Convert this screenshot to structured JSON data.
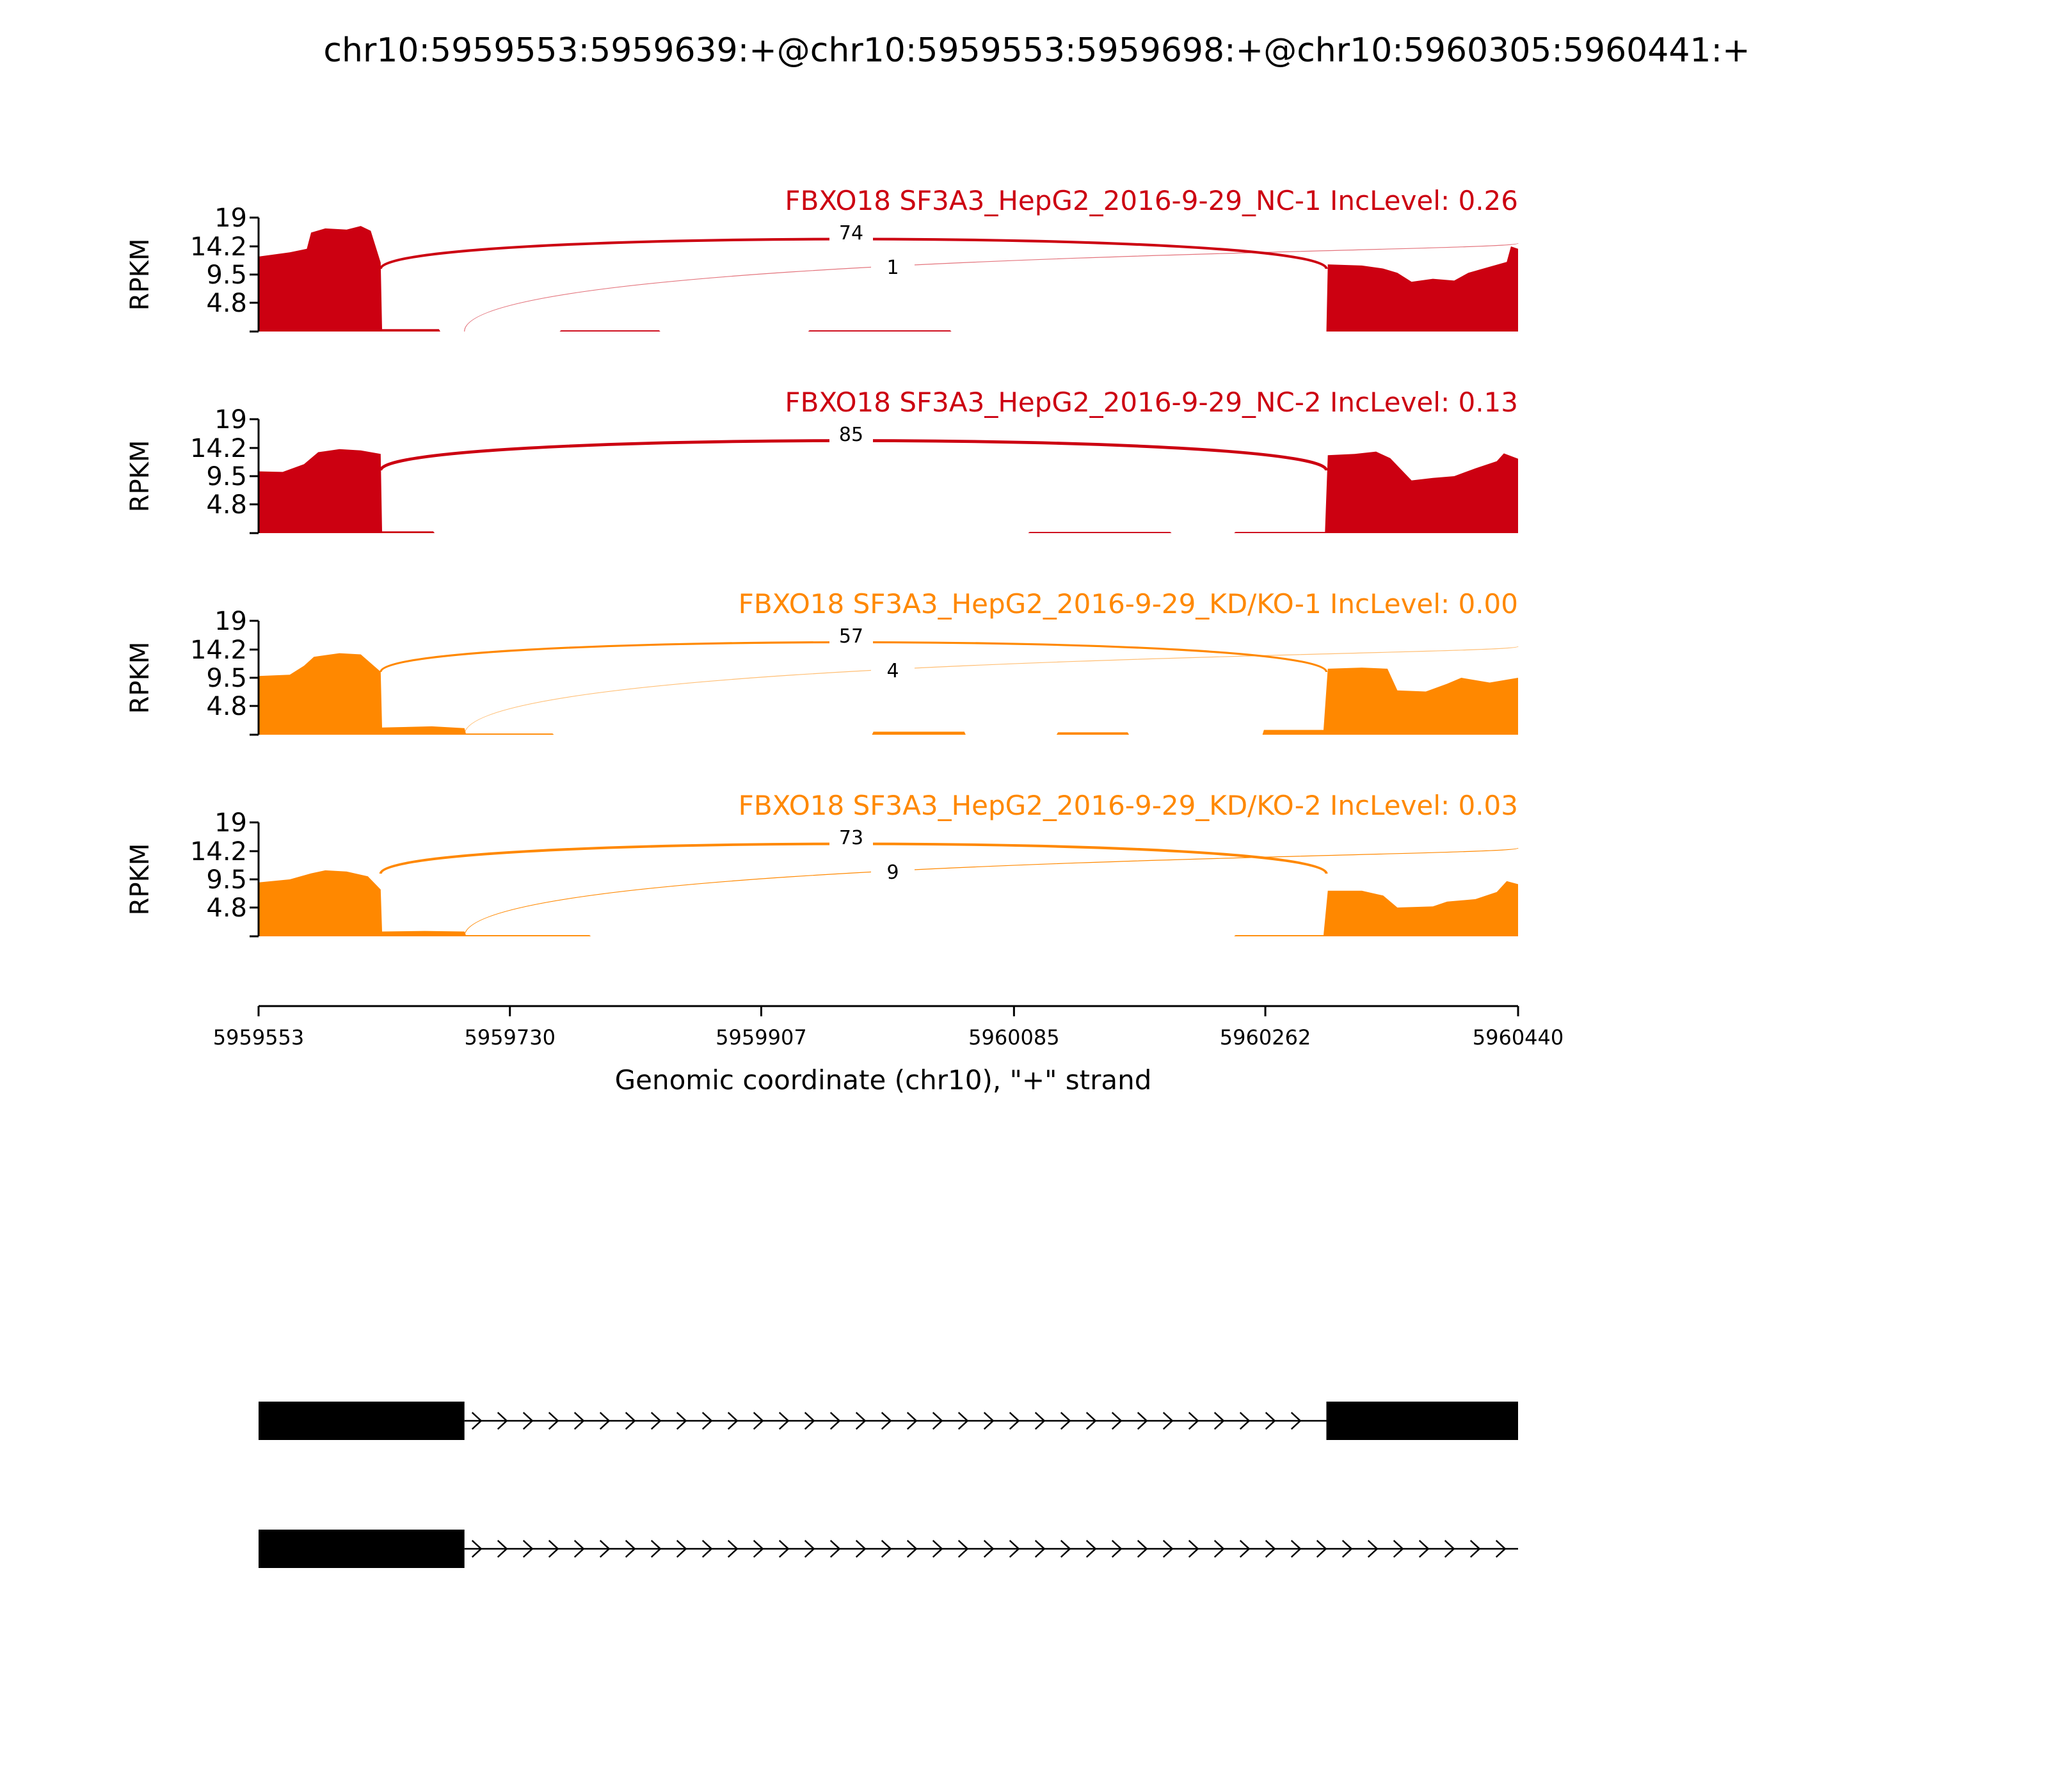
{
  "chart_data": {
    "type": "area",
    "title": "chr10:5959553:5959639:+@chr10:5959553:5959698:+@chr10:5960305:5960441:+",
    "xlabel": "Genomic coordinate (chr10), \"+\" strand",
    "ylabel": "RPKM",
    "xlim": [
      5959553,
      5960440
    ],
    "ylim": [
      0,
      19
    ],
    "x_ticks": [
      "5959553",
      "5959730",
      "5959907",
      "5960085",
      "5960262",
      "5960440"
    ],
    "y_ticks": [
      "19",
      "14.2",
      "9.5",
      "4.8"
    ],
    "exons": [
      [
        5959553,
        5959639
      ],
      [
        5959553,
        5959698
      ],
      [
        5960305,
        5960441
      ]
    ],
    "series": [
      {
        "name": "FBXO18 SF3A3_HepG2_2016-9-29_NC-1 IncLevel: 0.26",
        "color": "#cc0011",
        "junctions": [
          {
            "from": 5959639,
            "to": 5960305,
            "count": "74"
          },
          {
            "from": 5959698,
            "to": 5960440,
            "count": "1"
          }
        ],
        "coverage": [
          [
            5959553,
            12.5
          ],
          [
            5959575,
            13.2
          ],
          [
            5959587,
            13.8
          ],
          [
            5959590,
            16.5
          ],
          [
            5959600,
            17.2
          ],
          [
            5959615,
            17.0
          ],
          [
            5959625,
            17.6
          ],
          [
            5959632,
            16.8
          ],
          [
            5959639,
            11.5
          ],
          [
            5959640,
            0.4
          ],
          [
            5959680,
            0.4
          ],
          [
            5959681,
            0
          ],
          [
            5959765,
            0
          ],
          [
            5959766,
            0.2
          ],
          [
            5959835,
            0.2
          ],
          [
            5959836,
            0
          ],
          [
            5959940,
            0
          ],
          [
            5959941,
            0.2
          ],
          [
            5960040,
            0.2
          ],
          [
            5960041,
            0
          ],
          [
            5960305,
            0
          ],
          [
            5960306,
            11.2
          ],
          [
            5960330,
            11.0
          ],
          [
            5960345,
            10.5
          ],
          [
            5960355,
            9.8
          ],
          [
            5960365,
            8.3
          ],
          [
            5960380,
            8.8
          ],
          [
            5960395,
            8.5
          ],
          [
            5960405,
            9.8
          ],
          [
            5960420,
            10.8
          ],
          [
            5960432,
            11.6
          ],
          [
            5960435,
            14.2
          ],
          [
            5960440,
            13.8
          ]
        ]
      },
      {
        "name": "FBXO18 SF3A3_HepG2_2016-9-29_NC-2 IncLevel: 0.13",
        "color": "#cc0011",
        "junctions": [
          {
            "from": 5959639,
            "to": 5960305,
            "count": "85"
          }
        ],
        "coverage": [
          [
            5959553,
            10.3
          ],
          [
            5959570,
            10.2
          ],
          [
            5959585,
            11.5
          ],
          [
            5959595,
            13.5
          ],
          [
            5959610,
            14.0
          ],
          [
            5959625,
            13.8
          ],
          [
            5959639,
            13.2
          ],
          [
            5959640,
            0.3
          ],
          [
            5959676,
            0.3
          ],
          [
            5959677,
            0
          ],
          [
            5960095,
            0
          ],
          [
            5960096,
            0.2
          ],
          [
            5960195,
            0.2
          ],
          [
            5960196,
            0
          ],
          [
            5960240,
            0
          ],
          [
            5960241,
            0.2
          ],
          [
            5960304,
            0.2
          ],
          [
            5960306,
            13.0
          ],
          [
            5960325,
            13.2
          ],
          [
            5960340,
            13.6
          ],
          [
            5960350,
            12.5
          ],
          [
            5960365,
            8.8
          ],
          [
            5960380,
            9.2
          ],
          [
            5960395,
            9.5
          ],
          [
            5960410,
            10.8
          ],
          [
            5960425,
            12.0
          ],
          [
            5960430,
            13.3
          ],
          [
            5960440,
            12.4
          ]
        ]
      },
      {
        "name": "FBXO18 SF3A3_HepG2_2016-9-29_KD/KO-1 IncLevel: 0.00",
        "color": "#ff8800",
        "junctions": [
          {
            "from": 5959639,
            "to": 5960305,
            "count": "57"
          },
          {
            "from": 5959698,
            "to": 5960440,
            "count": "4"
          }
        ],
        "coverage": [
          [
            5959553,
            9.8
          ],
          [
            5959575,
            10.0
          ],
          [
            5959585,
            11.5
          ],
          [
            5959592,
            13.0
          ],
          [
            5959610,
            13.6
          ],
          [
            5959625,
            13.4
          ],
          [
            5959639,
            10.5
          ],
          [
            5959640,
            1.2
          ],
          [
            5959675,
            1.4
          ],
          [
            5959698,
            1.1
          ],
          [
            5959699,
            0.2
          ],
          [
            5959760,
            0.2
          ],
          [
            5959761,
            0
          ],
          [
            5959985,
            0
          ],
          [
            5959986,
            0.5
          ],
          [
            5960050,
            0.5
          ],
          [
            5960051,
            0
          ],
          [
            5960115,
            0
          ],
          [
            5960116,
            0.4
          ],
          [
            5960165,
            0.4
          ],
          [
            5960166,
            0
          ],
          [
            5960260,
            0
          ],
          [
            5960261,
            0.8
          ],
          [
            5960303,
            0.8
          ],
          [
            5960306,
            11.0
          ],
          [
            5960330,
            11.2
          ],
          [
            5960348,
            11.0
          ],
          [
            5960355,
            7.4
          ],
          [
            5960375,
            7.2
          ],
          [
            5960390,
            8.5
          ],
          [
            5960400,
            9.5
          ],
          [
            5960420,
            8.7
          ],
          [
            5960440,
            9.5
          ]
        ]
      },
      {
        "name": "FBXO18 SF3A3_HepG2_2016-9-29_KD/KO-2 IncLevel: 0.03",
        "color": "#ff8800",
        "junctions": [
          {
            "from": 5959639,
            "to": 5960305,
            "count": "73"
          },
          {
            "from": 5959698,
            "to": 5960440,
            "count": "9"
          }
        ],
        "coverage": [
          [
            5959553,
            9.0
          ],
          [
            5959575,
            9.5
          ],
          [
            5959590,
            10.5
          ],
          [
            5959600,
            11.0
          ],
          [
            5959615,
            10.8
          ],
          [
            5959630,
            10.0
          ],
          [
            5959639,
            7.8
          ],
          [
            5959640,
            0.8
          ],
          [
            5959670,
            0.9
          ],
          [
            5959698,
            0.8
          ],
          [
            5959699,
            0.2
          ],
          [
            5959786,
            0.2
          ],
          [
            5959787,
            0
          ],
          [
            5960240,
            0
          ],
          [
            5960241,
            0.2
          ],
          [
            5960303,
            0.2
          ],
          [
            5960306,
            7.6
          ],
          [
            5960330,
            7.6
          ],
          [
            5960345,
            6.8
          ],
          [
            5960355,
            4.8
          ],
          [
            5960380,
            5.0
          ],
          [
            5960390,
            5.8
          ],
          [
            5960410,
            6.2
          ],
          [
            5960425,
            7.4
          ],
          [
            5960432,
            9.2
          ],
          [
            5960440,
            8.7
          ]
        ]
      }
    ],
    "transcripts": [
      {
        "exons": [
          [
            5959553,
            5959698
          ],
          [
            5960305,
            5960440
          ]
        ],
        "intron": [
          5959698,
          5960305
        ],
        "strand": "+"
      },
      {
        "exons": [
          [
            5959553,
            5959698
          ]
        ],
        "intron": [
          5959698,
          5960440
        ],
        "strand": "+"
      }
    ]
  }
}
